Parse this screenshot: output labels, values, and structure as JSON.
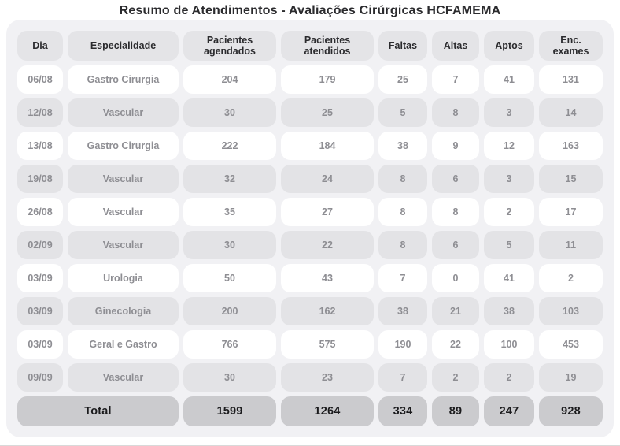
{
  "title": "Resumo de Atendimentos - Avaliações Cirúrgicas HCFAMEMA",
  "colors": {
    "card_background": "#f1f1f4",
    "header_pill": "#e4e4e7",
    "row_pill_gray": "#e3e3e6",
    "row_pill_white": "#ffffff",
    "total_pill": "#cbcbce",
    "header_text": "#2b2b2e",
    "data_text": "#8e8e93",
    "total_text": "#1b1b1d"
  },
  "table": {
    "columns": [
      "Dia",
      "Especialidade",
      "Pacientes agendados",
      "Pacientes atendidos",
      "Faltas",
      "Altas",
      "Aptos",
      "Enc. exames"
    ],
    "rows": [
      [
        "06/08",
        "Gastro Cirurgia",
        "204",
        "179",
        "25",
        "7",
        "41",
        "131"
      ],
      [
        "12/08",
        "Vascular",
        "30",
        "25",
        "5",
        "8",
        "3",
        "14"
      ],
      [
        "13/08",
        "Gastro Cirurgia",
        "222",
        "184",
        "38",
        "9",
        "12",
        "163"
      ],
      [
        "19/08",
        "Vascular",
        "32",
        "24",
        "8",
        "6",
        "3",
        "15"
      ],
      [
        "26/08",
        "Vascular",
        "35",
        "27",
        "8",
        "8",
        "2",
        "17"
      ],
      [
        "02/09",
        "Vascular",
        "30",
        "22",
        "8",
        "6",
        "5",
        "11"
      ],
      [
        "03/09",
        "Urologia",
        "50",
        "43",
        "7",
        "0",
        "41",
        "2"
      ],
      [
        "03/09",
        "Ginecologia",
        "200",
        "162",
        "38",
        "21",
        "38",
        "103"
      ],
      [
        "03/09",
        "Geral e Gastro",
        "766",
        "575",
        "190",
        "22",
        "100",
        "453"
      ],
      [
        "09/09",
        "Vascular",
        "30",
        "23",
        "7",
        "2",
        "2",
        "19"
      ]
    ],
    "total_label": "Total",
    "total_values": [
      "1599",
      "1264",
      "334",
      "89",
      "247",
      "928"
    ]
  },
  "chart_data": {
    "type": "table",
    "title": "Resumo de Atendimentos - Avaliações Cirúrgicas HCFAMEMA",
    "columns": [
      "Dia",
      "Especialidade",
      "Pacientes agendados",
      "Pacientes atendidos",
      "Faltas",
      "Altas",
      "Aptos",
      "Enc. exames"
    ],
    "rows": [
      [
        "06/08",
        "Gastro Cirurgia",
        204,
        179,
        25,
        7,
        41,
        131
      ],
      [
        "12/08",
        "Vascular",
        30,
        25,
        5,
        8,
        3,
        14
      ],
      [
        "13/08",
        "Gastro Cirurgia",
        222,
        184,
        38,
        9,
        12,
        163
      ],
      [
        "19/08",
        "Vascular",
        32,
        24,
        8,
        6,
        3,
        15
      ],
      [
        "26/08",
        "Vascular",
        35,
        27,
        8,
        8,
        2,
        17
      ],
      [
        "02/09",
        "Vascular",
        30,
        22,
        8,
        6,
        5,
        11
      ],
      [
        "03/09",
        "Urologia",
        50,
        43,
        7,
        0,
        41,
        2
      ],
      [
        "03/09",
        "Ginecologia",
        200,
        162,
        38,
        21,
        38,
        103
      ],
      [
        "03/09",
        "Geral e Gastro",
        766,
        575,
        190,
        22,
        100,
        453
      ],
      [
        "09/09",
        "Vascular",
        30,
        23,
        7,
        2,
        2,
        19
      ]
    ],
    "total_row": [
      "Total",
      1599,
      1264,
      334,
      89,
      247,
      928
    ],
    "layout_hints": {
      "zebra_striping": true,
      "rounded_pill_cells": true,
      "total_row_emphasized": true
    }
  }
}
